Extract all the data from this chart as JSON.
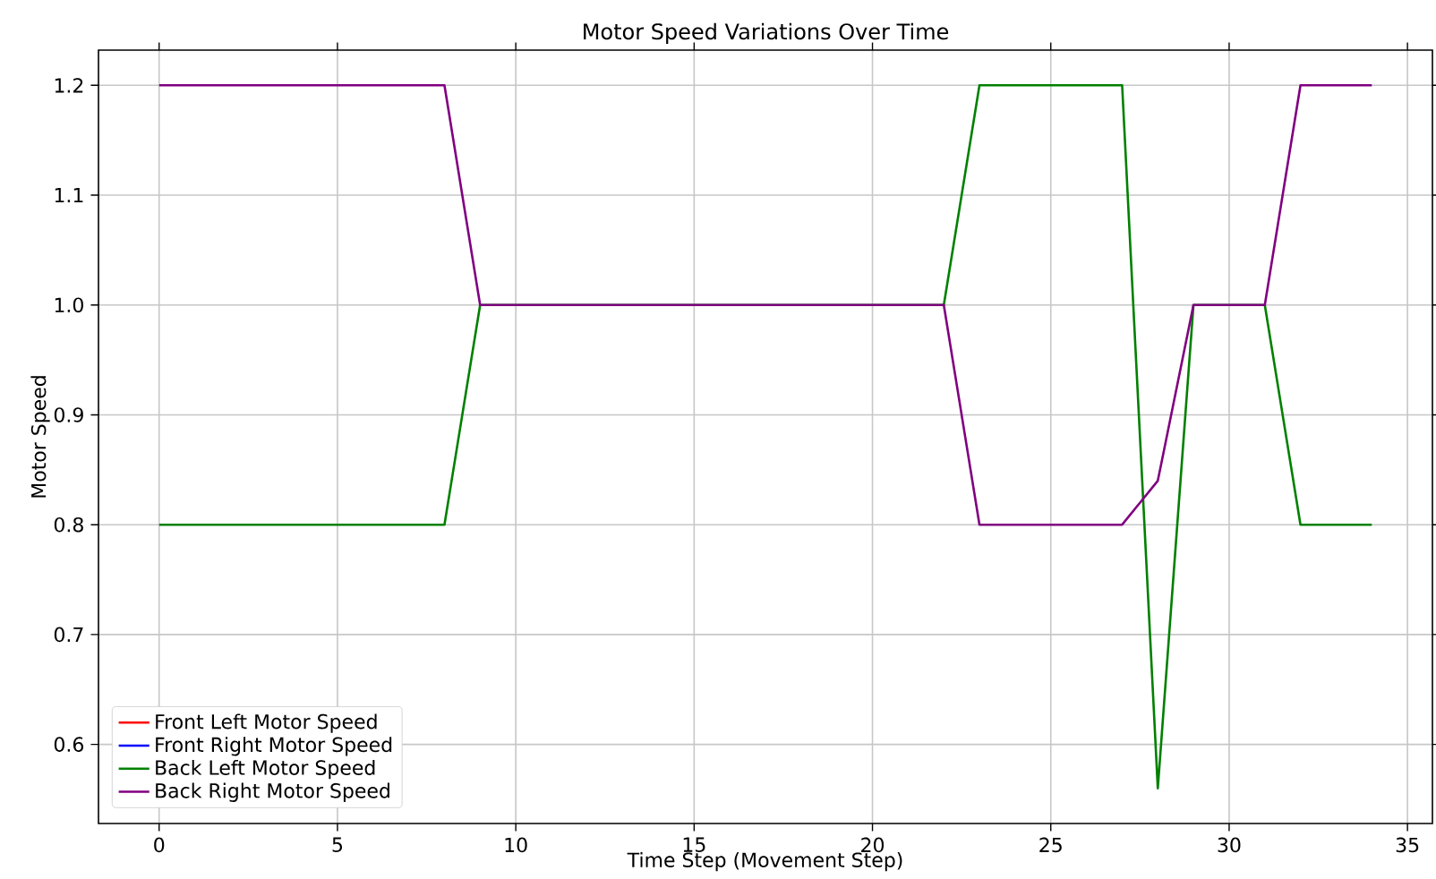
{
  "chart_data": {
    "type": "line",
    "title": "Motor Speed Variations Over Time",
    "xlabel": "Time Step (Movement Step)",
    "ylabel": "Motor Speed",
    "x": [
      0,
      1,
      2,
      3,
      4,
      5,
      6,
      7,
      8,
      9,
      10,
      11,
      12,
      13,
      14,
      15,
      16,
      17,
      18,
      19,
      20,
      21,
      22,
      23,
      24,
      25,
      26,
      27,
      28,
      29,
      30,
      31,
      32,
      33,
      34
    ],
    "series": [
      {
        "name": "Front Left Motor Speed",
        "color": "#ff0000",
        "values": [
          null,
          null,
          null,
          null,
          null,
          null,
          null,
          null,
          null,
          null,
          null,
          null,
          null,
          null,
          null,
          null,
          null,
          null,
          null,
          null,
          null,
          null,
          null,
          null,
          null,
          null,
          null,
          null,
          null,
          null,
          null,
          null,
          null,
          null,
          null
        ]
      },
      {
        "name": "Front Right Motor Speed",
        "color": "#0000ff",
        "values": [
          null,
          null,
          null,
          null,
          null,
          null,
          null,
          null,
          null,
          null,
          null,
          null,
          null,
          null,
          null,
          null,
          null,
          null,
          null,
          null,
          null,
          null,
          null,
          null,
          null,
          null,
          null,
          null,
          null,
          null,
          null,
          null,
          null,
          null,
          null
        ]
      },
      {
        "name": "Back Left Motor Speed",
        "color": "#008000",
        "values": [
          0.8,
          0.8,
          0.8,
          0.8,
          0.8,
          0.8,
          0.8,
          0.8,
          0.8,
          1.0,
          1.0,
          1.0,
          1.0,
          1.0,
          1.0,
          1.0,
          1.0,
          1.0,
          1.0,
          1.0,
          1.0,
          1.0,
          1.0,
          1.2,
          1.2,
          1.2,
          1.2,
          1.2,
          0.56,
          1.0,
          1.0,
          1.0,
          0.8,
          0.8,
          0.8
        ]
      },
      {
        "name": "Back Right Motor Speed",
        "color": "#800080",
        "values": [
          1.2,
          1.2,
          1.2,
          1.2,
          1.2,
          1.2,
          1.2,
          1.2,
          1.2,
          1.0,
          1.0,
          1.0,
          1.0,
          1.0,
          1.0,
          1.0,
          1.0,
          1.0,
          1.0,
          1.0,
          1.0,
          1.0,
          1.0,
          0.8,
          0.8,
          0.8,
          0.8,
          0.8,
          0.84,
          1.0,
          1.0,
          1.0,
          1.2,
          1.2,
          1.2
        ]
      }
    ],
    "xlim": [
      -1.7,
      35.7
    ],
    "ylim": [
      0.528,
      1.232
    ],
    "xticks": [
      0,
      5,
      10,
      15,
      20,
      25,
      30,
      35
    ],
    "yticks": [
      {
        "value": 0.6,
        "label": "0.6"
      },
      {
        "value": 0.7,
        "label": "0.7"
      },
      {
        "value": 0.8,
        "label": "0.8"
      },
      {
        "value": 0.9,
        "label": "0.9"
      },
      {
        "value": 1.0,
        "label": "1.0"
      },
      {
        "value": 1.1,
        "label": "1.1"
      },
      {
        "value": 1.2,
        "label": "1.2"
      }
    ],
    "grid": true,
    "legend": "bottom left",
    "marker": "none",
    "line_style": "solid"
  }
}
